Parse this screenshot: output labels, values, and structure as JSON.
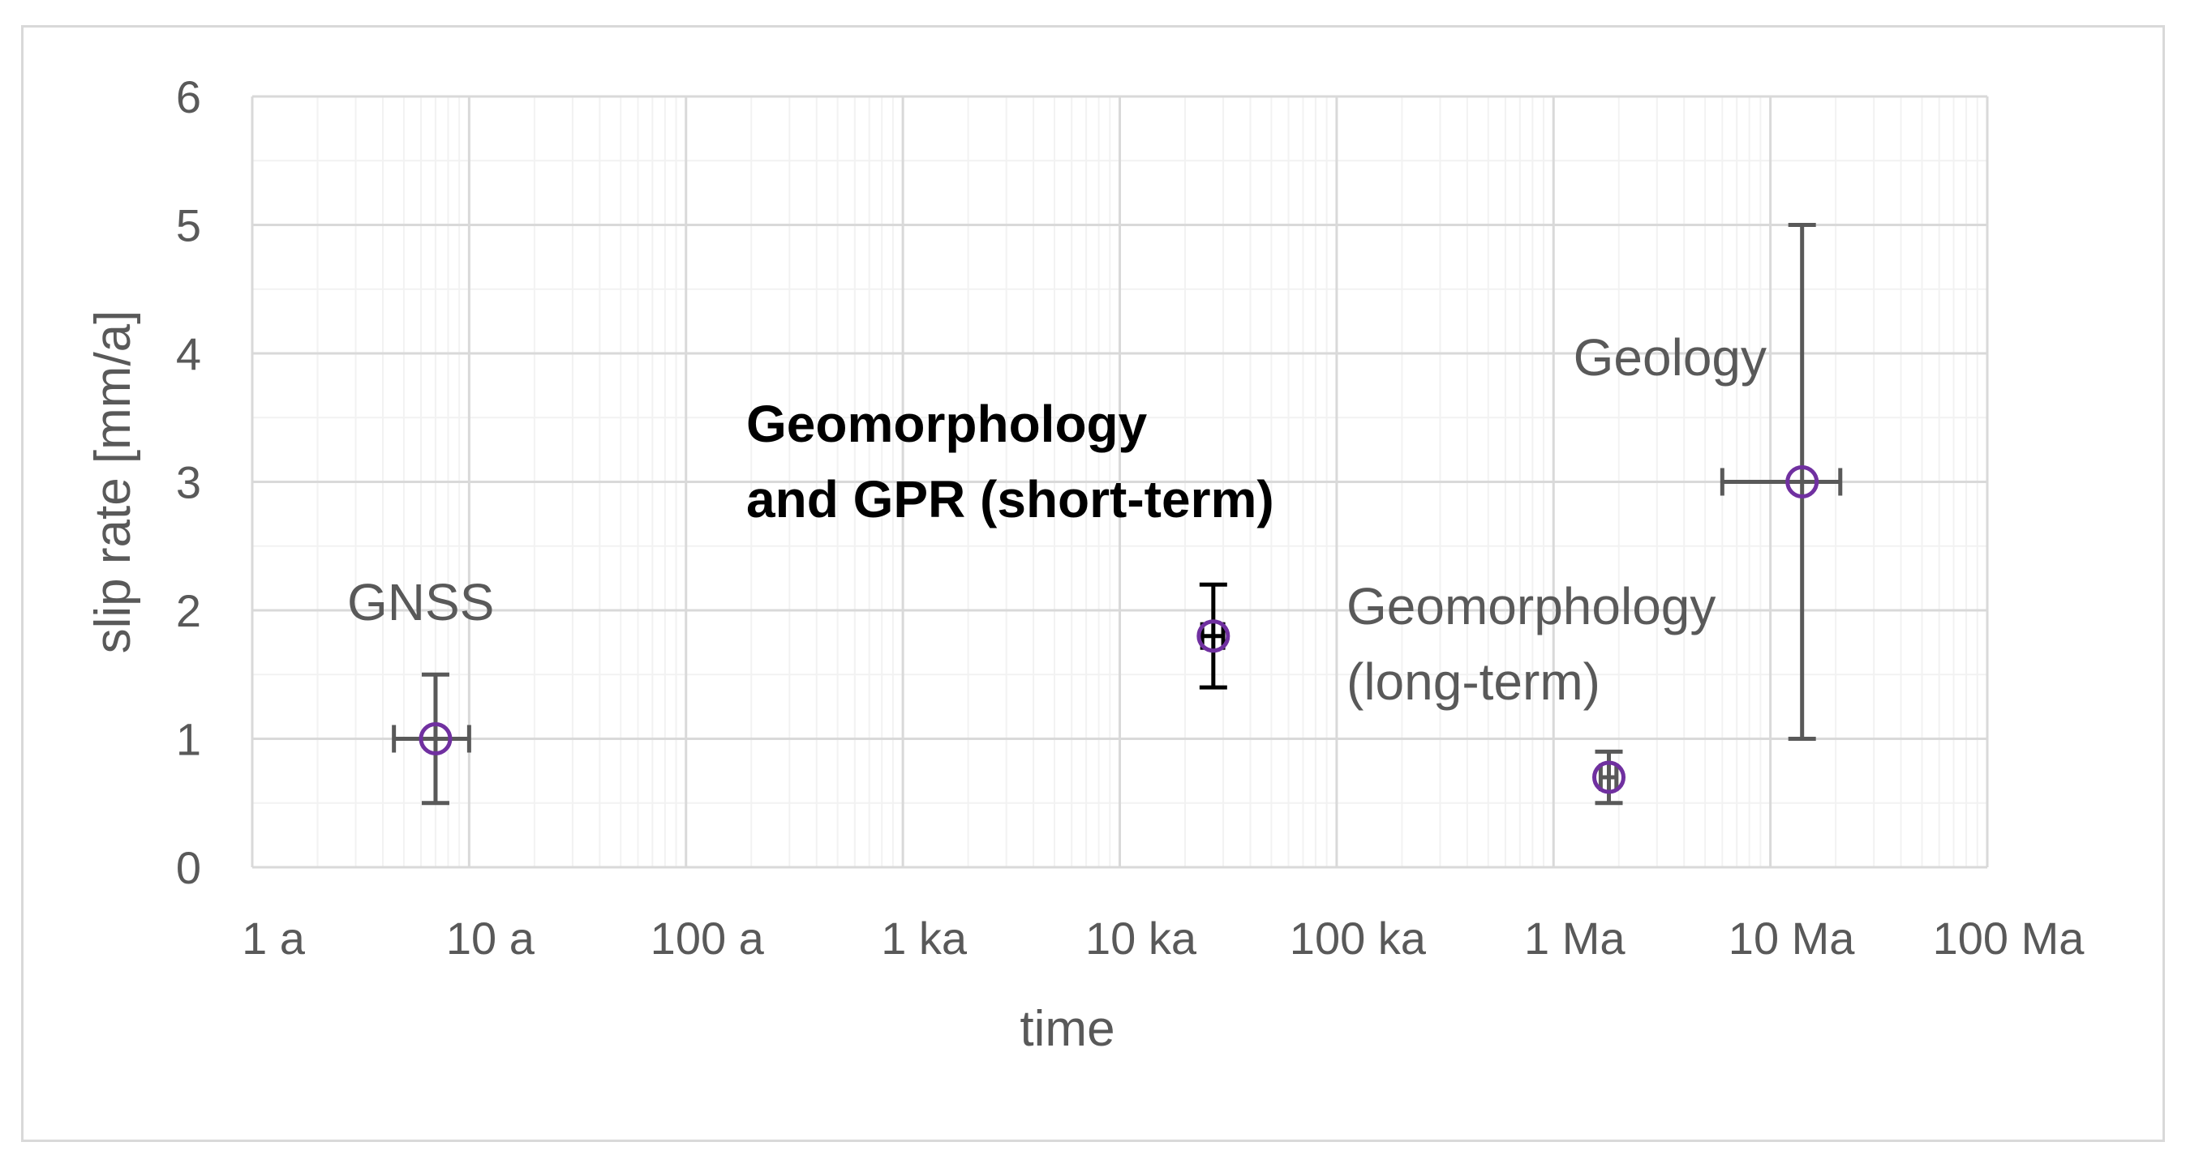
{
  "chart_data": {
    "type": "scatter",
    "xlabel": "time",
    "ylabel": "slip rate [mm/a]",
    "x_scale": "log",
    "x_ticks": [
      {
        "value": 1,
        "label": "1 a"
      },
      {
        "value": 10,
        "label": "10 a"
      },
      {
        "value": 100,
        "label": "100 a"
      },
      {
        "value": 1000,
        "label": "1 ka"
      },
      {
        "value": 10000,
        "label": "10 ka"
      },
      {
        "value": 100000,
        "label": "100 ka"
      },
      {
        "value": 1000000,
        "label": "1 Ma"
      },
      {
        "value": 10000000,
        "label": "10 Ma"
      },
      {
        "value": 100000000,
        "label": "100 Ma"
      }
    ],
    "xlim": [
      1,
      100000000
    ],
    "y_ticks": [
      {
        "value": 0,
        "label": "0"
      },
      {
        "value": 1,
        "label": "1"
      },
      {
        "value": 2,
        "label": "2"
      },
      {
        "value": 3,
        "label": "3"
      },
      {
        "value": 4,
        "label": "4"
      },
      {
        "value": 5,
        "label": "5"
      },
      {
        "value": 6,
        "label": "6"
      }
    ],
    "ylim": [
      0,
      6
    ],
    "grid": true,
    "colors": {
      "marker": "#7030a0",
      "error_bar": "#595959",
      "error_bar_dark": "#000000",
      "grid": "#d9d9d9",
      "grid_minor": "#f2f2f2"
    },
    "points": [
      {
        "x": 7,
        "y": 1.0,
        "x_err": [
          4.5,
          10
        ],
        "y_err": [
          0.5,
          1.5
        ],
        "dark": false
      },
      {
        "x": 27000,
        "y": 1.8,
        "x_err": [
          24000,
          30000
        ],
        "y_err": [
          1.4,
          2.2
        ],
        "dark": true
      },
      {
        "x": 1800000,
        "y": 0.7,
        "x_err": [
          1650000,
          1950000
        ],
        "y_err": [
          0.5,
          0.9
        ],
        "dark": false
      },
      {
        "x": 14000000,
        "y": 3.0,
        "x_err": [
          6000000,
          21000000
        ],
        "y_err": [
          1.0,
          5.0
        ],
        "dark": false
      }
    ],
    "annotations": [
      {
        "lines": [
          "GNSS"
        ],
        "bold": false
      },
      {
        "lines": [
          "Geomorphology",
          "and GPR (short-term)"
        ],
        "bold": true
      },
      {
        "lines": [
          "Geomorphology",
          "(long-term)"
        ],
        "bold": false
      },
      {
        "lines": [
          "Geology"
        ],
        "bold": false
      }
    ]
  }
}
